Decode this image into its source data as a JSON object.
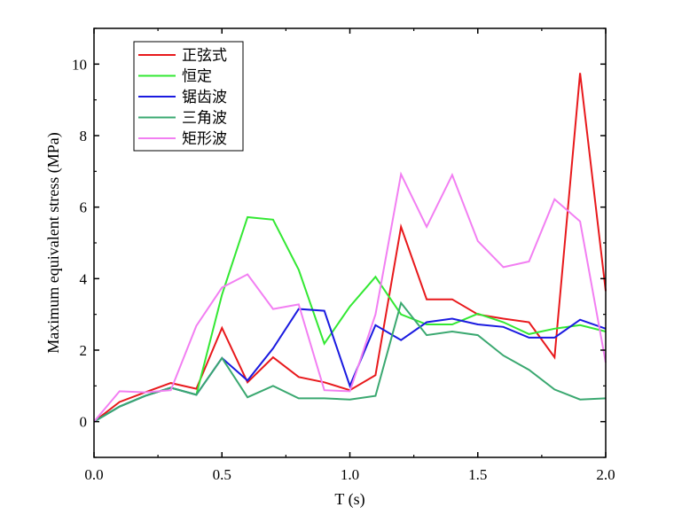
{
  "chart_data": {
    "type": "line",
    "xlabel": "T (s)",
    "ylabel": "Maximum equivalent stress (MPa)",
    "xlim": [
      0,
      2.0
    ],
    "ylim": [
      -1,
      11
    ],
    "xticks": [
      "0.0",
      "0.5",
      "1.0",
      "1.5",
      "2.0"
    ],
    "xtick_values": [
      0,
      0.5,
      1.0,
      1.5,
      2.0
    ],
    "yticks": [
      "0",
      "2",
      "4",
      "6",
      "8",
      "10"
    ],
    "ytick_values": [
      0,
      2,
      4,
      6,
      8,
      10
    ],
    "grid": false,
    "legend_position": "top-left",
    "x": [
      0.0,
      0.1,
      0.2,
      0.3,
      0.4,
      0.5,
      0.6,
      0.7,
      0.8,
      0.9,
      1.0,
      1.1,
      1.2,
      1.3,
      1.4,
      1.5,
      1.6,
      1.7,
      1.8,
      1.9,
      2.0
    ],
    "series": [
      {
        "name": "正弦式",
        "color": "#e8191c",
        "values": [
          0,
          0.55,
          0.82,
          1.08,
          0.92,
          2.62,
          1.1,
          1.8,
          1.25,
          1.1,
          0.88,
          1.3,
          5.45,
          3.42,
          3.42,
          3.0,
          2.88,
          2.78,
          1.8,
          9.75,
          3.65
        ]
      },
      {
        "name": "恒定",
        "color": "#33e833",
        "values": [
          0,
          0.42,
          0.72,
          0.95,
          0.75,
          3.55,
          5.72,
          5.65,
          4.25,
          2.18,
          3.22,
          4.05,
          3.0,
          2.72,
          2.72,
          3.02,
          2.78,
          2.45,
          2.6,
          2.7,
          2.52
        ]
      },
      {
        "name": "锯齿波",
        "color": "#1a1ae0",
        "values": [
          0,
          0.42,
          0.72,
          0.95,
          0.75,
          1.78,
          1.15,
          2.05,
          3.15,
          3.1,
          1.0,
          2.7,
          2.28,
          2.78,
          2.88,
          2.72,
          2.65,
          2.35,
          2.35,
          2.85,
          2.6
        ]
      },
      {
        "name": "三角波",
        "color": "#3aa870",
        "values": [
          0,
          0.42,
          0.72,
          0.95,
          0.75,
          1.78,
          0.68,
          1.0,
          0.65,
          0.65,
          0.62,
          0.72,
          3.32,
          2.42,
          2.52,
          2.42,
          1.85,
          1.45,
          0.9,
          0.62,
          0.65
        ]
      },
      {
        "name": "矩形波",
        "color": "#f27ff2",
        "values": [
          0,
          0.85,
          0.82,
          0.88,
          2.68,
          3.75,
          4.12,
          3.15,
          3.28,
          0.88,
          0.85,
          3.0,
          6.92,
          5.45,
          6.9,
          5.05,
          4.32,
          4.48,
          6.22,
          5.6,
          1.65
        ]
      }
    ]
  }
}
